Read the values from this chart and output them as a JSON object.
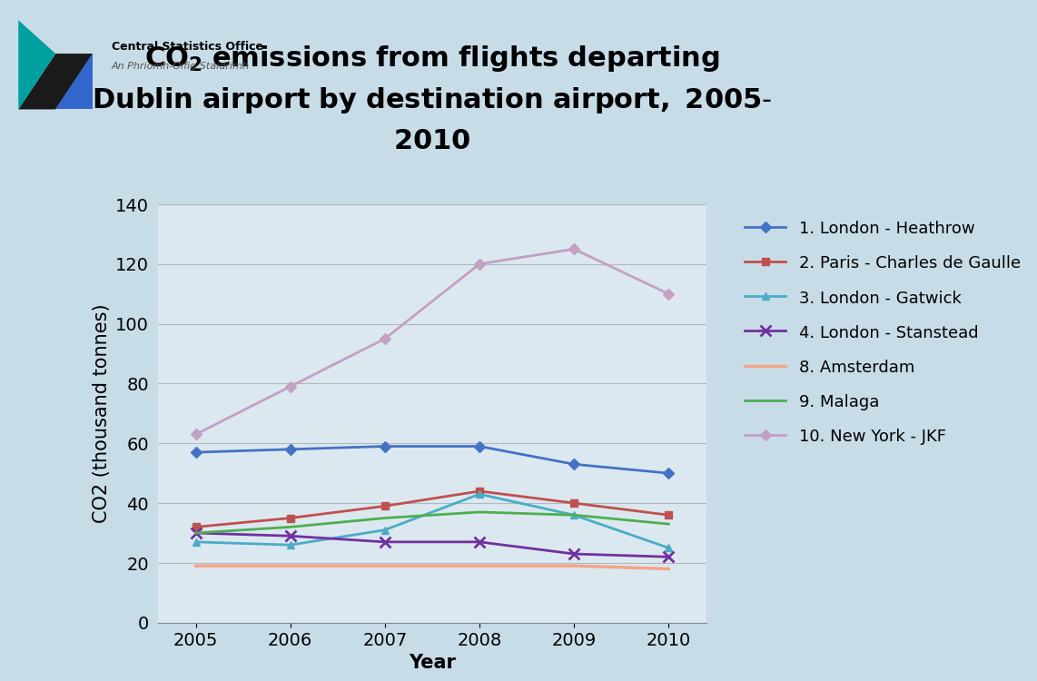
{
  "years": [
    2005,
    2006,
    2007,
    2008,
    2009,
    2010
  ],
  "series": [
    {
      "label": "1. London - Heathrow",
      "values": [
        57,
        58,
        59,
        59,
        53,
        50
      ],
      "color": "#4472C4",
      "marker": "D",
      "linestyle": "-",
      "linewidth": 2.0,
      "markersize": 6
    },
    {
      "label": "2. Paris - Charles de Gaulle",
      "values": [
        32,
        35,
        39,
        44,
        40,
        36
      ],
      "color": "#C0504D",
      "marker": "s",
      "linestyle": "-",
      "linewidth": 2.0,
      "markersize": 6
    },
    {
      "label": "3. London - Gatwick",
      "values": [
        27,
        26,
        31,
        43,
        36,
        25
      ],
      "color": "#4BACC6",
      "marker": "^",
      "linestyle": "-",
      "linewidth": 2.0,
      "markersize": 6
    },
    {
      "label": "4. London - Stanstead",
      "values": [
        30,
        29,
        27,
        27,
        23,
        22
      ],
      "color": "#7030A0",
      "marker": "x",
      "linestyle": "-",
      "linewidth": 2.0,
      "markersize": 8,
      "markeredgewidth": 2
    },
    {
      "label": "8. Amsterdam",
      "values": [
        19,
        19,
        19,
        19,
        19,
        18
      ],
      "color": "#F4A58A",
      "marker": "",
      "linestyle": "-",
      "linewidth": 2.5,
      "markersize": 0
    },
    {
      "label": "9. Malaga",
      "values": [
        30,
        32,
        35,
        37,
        36,
        33
      ],
      "color": "#4CAF50",
      "marker": "",
      "linestyle": "-",
      "linewidth": 2.0,
      "markersize": 0
    },
    {
      "label": "10. New York - JKF",
      "values": [
        63,
        79,
        95,
        120,
        125,
        110
      ],
      "color": "#C4A0C4",
      "marker": "D",
      "linestyle": "-",
      "linewidth": 2.0,
      "markersize": 6
    }
  ],
  "xlabel": "Year",
  "ylabel": "CO2 (thousand tonnes)",
  "ylim": [
    0,
    140
  ],
  "yticks": [
    0,
    20,
    40,
    60,
    80,
    100,
    120,
    140
  ],
  "outer_bg": "#C8DCE8",
  "plot_area_bg": "#DCE8F0",
  "grid_color": "#B0B8C0",
  "title_fontsize": 22,
  "axis_label_fontsize": 15,
  "tick_fontsize": 14,
  "legend_fontsize": 13,
  "cso_title": "Central Statistics Office",
  "cso_subtitle": "An Phriomh-Oifig Staidrimh"
}
